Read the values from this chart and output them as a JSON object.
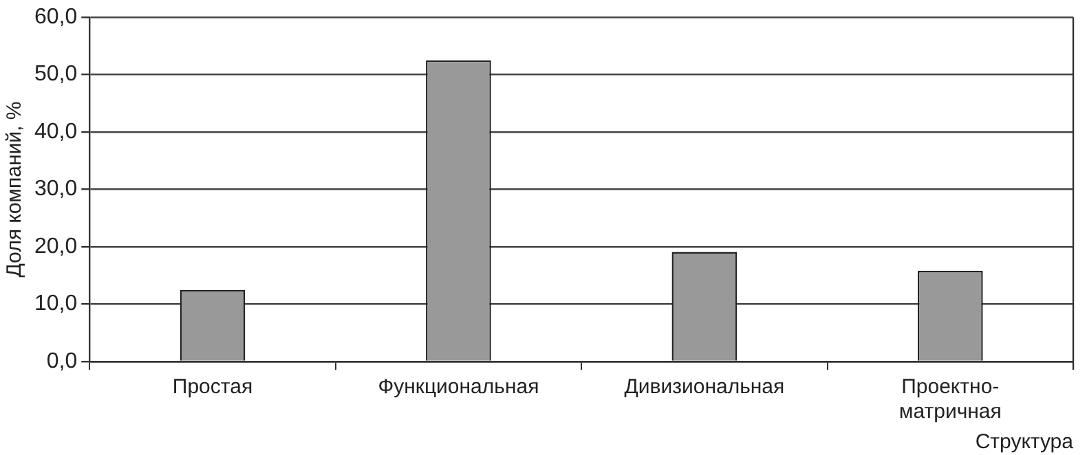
{
  "chart_data": {
    "type": "bar",
    "xlabel": "Структура",
    "ylabel": "Доля компаний, %",
    "categories": [
      "Простая",
      "Функциональная",
      "Дивизиональная",
      "Проектно-матричная"
    ],
    "values": [
      12.5,
      52.5,
      19.1,
      15.8
    ],
    "color": "#999999",
    "ylim": [
      0,
      60
    ],
    "yticks": [
      {
        "value": 0,
        "label": "0,0"
      },
      {
        "value": 10,
        "label": "10,0"
      },
      {
        "value": 20,
        "label": "20,0"
      },
      {
        "value": 30,
        "label": "30,0"
      },
      {
        "value": 40,
        "label": "40,0"
      },
      {
        "value": 50,
        "label": "50,0"
      },
      {
        "value": 60,
        "label": "60,0"
      }
    ],
    "grid": "y",
    "legend": false
  }
}
